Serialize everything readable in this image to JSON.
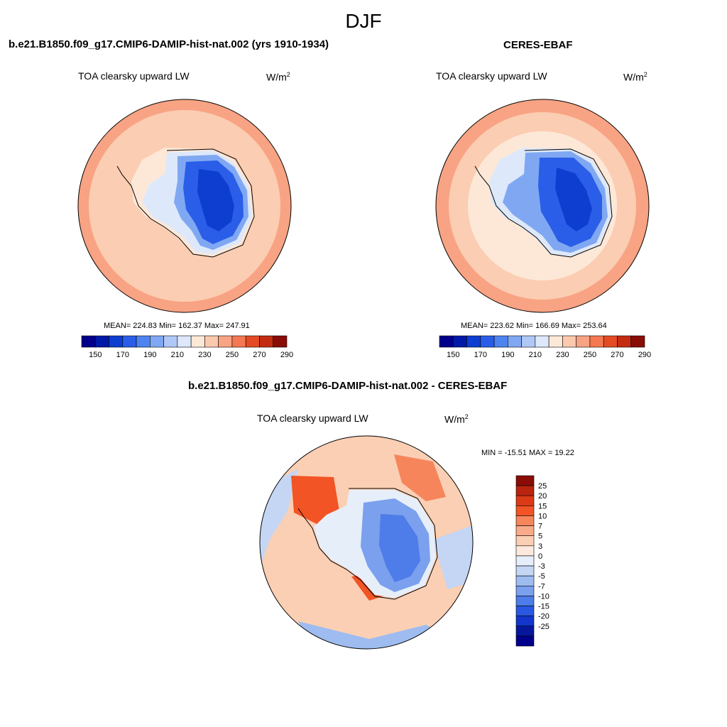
{
  "figure": {
    "season": "DJF"
  },
  "panels": [
    {
      "id": "model",
      "title": "b.e21.B1850.f09_g17.CMIP6-DAMIP-hist-nat.002 (yrs 1910-1934)",
      "variable_label": "TOA clearsky upward LW",
      "units": "W/m",
      "units_sup": "2",
      "stats": "MEAN= 224.83  Min= 162.37  Max= 247.91"
    },
    {
      "id": "obs",
      "title": "CERES-EBAF",
      "variable_label": "TOA clearsky upward LW",
      "units": "W/m",
      "units_sup": "2",
      "stats": "MEAN= 223.62  Min= 166.69  Max= 253.64"
    },
    {
      "id": "diff",
      "title": "b.e21.B1850.f09_g17.CMIP6-DAMIP-hist-nat.002 - CERES-EBAF",
      "variable_label": "TOA clearsky upward LW",
      "units": "W/m",
      "units_sup": "2",
      "stats": "MIN = -15.51 MAX =  19.22"
    }
  ],
  "colorbars": {
    "absolute": {
      "colors": [
        "#00008a",
        "#0019a6",
        "#0e3ed0",
        "#2a5ee8",
        "#4e84f0",
        "#80a8f2",
        "#b0c8f6",
        "#dde8fa",
        "#fde8d8",
        "#fbc9ad",
        "#f8a383",
        "#f47852",
        "#e44b25",
        "#c42c12",
        "#8a0c06"
      ],
      "tick_labels": [
        "150",
        "170",
        "190",
        "210",
        "230",
        "250",
        "270",
        "290"
      ]
    },
    "difference": {
      "colors": [
        "#8a0c06",
        "#b8240e",
        "#dc3a17",
        "#f25425",
        "#f6855c",
        "#f9aa88",
        "#fbcfb4",
        "#fde9dc",
        "#e6eef9",
        "#c4d6f4",
        "#9ebcf0",
        "#7aa0ee",
        "#4e7ce9",
        "#2a58e2",
        "#1236cc",
        "#06179e",
        "#00008a"
      ],
      "tick_labels": [
        "25",
        "20",
        "15",
        "10",
        "7",
        "5",
        "3",
        "0",
        "-3",
        "-5",
        "-7",
        "-10",
        "-15",
        "-20",
        "-25"
      ]
    }
  },
  "map_colors": {
    "ocean_warm": "#fbcdb2",
    "ocean_hot": "#f8a383",
    "ocean_ring_light": "#fde8d8",
    "ice_edge": "#dde8fa",
    "ice_mid": "#80a8f2",
    "ice_core": "#2a5ee8",
    "ice_deep": "#0e3ed0",
    "diff_pos": "#fbcfb4",
    "diff_pos_strong": "#f25425",
    "diff_neg": "#c4d6f4",
    "diff_neg_strong": "#4e7ce9",
    "coast": "#000000"
  }
}
